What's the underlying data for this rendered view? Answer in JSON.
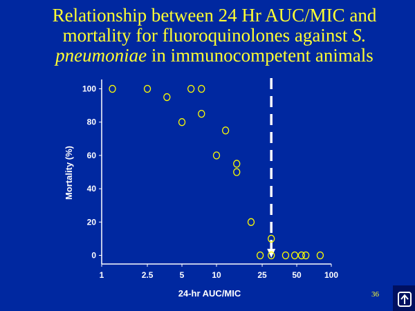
{
  "slide": {
    "title_line1": "Relationship between 24 Hr AUC/MIC and",
    "title_line2a": "mortality for fluoroquinolones against ",
    "title_line2b": "S.",
    "title_line3a": "pneumoniae",
    "title_line3b": " in immunocompetent animals",
    "page_number": "36",
    "logo_icon": "upload-arrow-icon"
  },
  "chart_data": {
    "type": "scatter",
    "xlabel": "24-hr AUC/MIC",
    "ylabel": "Mortality (%)",
    "x_scale": "log",
    "xlim": [
      1,
      100
    ],
    "ylim": [
      0,
      100
    ],
    "x_ticks": [
      1,
      2.5,
      5,
      10,
      25,
      50,
      100
    ],
    "x_tick_labels": [
      "1",
      "2.5",
      "5",
      "10",
      "25",
      "50",
      "100"
    ],
    "y_ticks": [
      0,
      20,
      40,
      60,
      80,
      100
    ],
    "y_tick_labels": [
      "0",
      "20",
      "40",
      "60",
      "80",
      "100"
    ],
    "grid": false,
    "marker_color": "#ffff00",
    "points": [
      [
        1.24,
        100
      ],
      [
        2.5,
        100
      ],
      [
        3.7,
        95
      ],
      [
        5,
        80
      ],
      [
        6,
        100
      ],
      [
        7.4,
        100
      ],
      [
        7.4,
        85
      ],
      [
        10,
        60
      ],
      [
        12,
        75
      ],
      [
        15,
        55
      ],
      [
        15,
        50
      ],
      [
        20,
        20
      ],
      [
        24,
        0
      ],
      [
        30,
        10
      ],
      [
        30,
        0
      ],
      [
        40,
        0
      ],
      [
        48,
        0
      ],
      [
        55,
        0
      ],
      [
        60,
        0
      ],
      [
        80,
        0
      ]
    ],
    "threshold_x": 30,
    "threshold_style": "dashed white line with down arrow"
  }
}
